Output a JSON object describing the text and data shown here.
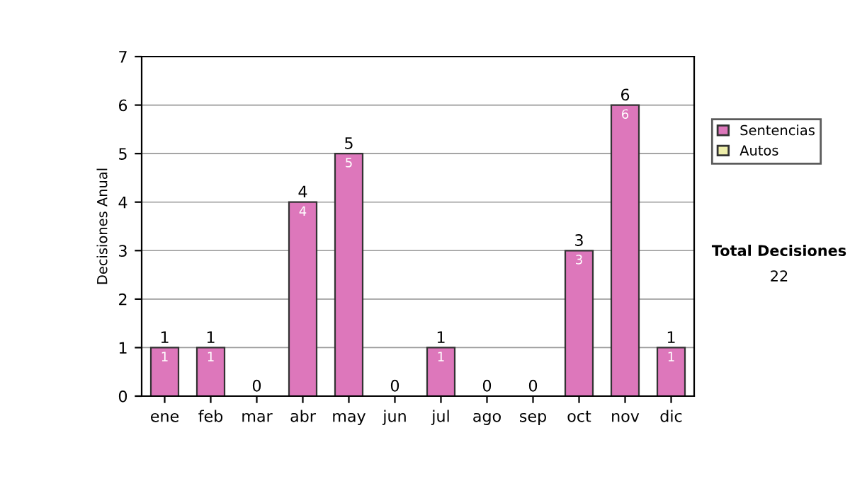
{
  "chart_data": {
    "type": "bar",
    "ylabel": "Decisiones Anual",
    "categories": [
      "ene",
      "feb",
      "mar",
      "abr",
      "may",
      "jun",
      "jul",
      "ago",
      "sep",
      "oct",
      "nov",
      "dic"
    ],
    "stacked": true,
    "series": [
      {
        "name": "Sentencias",
        "color": "#dd77bb",
        "values": [
          1,
          1,
          0,
          4,
          5,
          0,
          1,
          0,
          0,
          3,
          6,
          1
        ],
        "value_labels": [
          "1",
          "1",
          null,
          "4",
          "5",
          null,
          "1",
          null,
          null,
          "3",
          "6",
          "1"
        ]
      },
      {
        "name": "Autos",
        "color": "#eeeeaa",
        "values": [
          0,
          0,
          0,
          0,
          0,
          0,
          0,
          0,
          0,
          0,
          0,
          0
        ]
      }
    ],
    "totals": [
      "1",
      "1",
      "0",
      "4",
      "5",
      "0",
      "1",
      "0",
      "0",
      "3",
      "6",
      "1"
    ],
    "ylim": [
      0,
      7
    ],
    "yticks": [
      0,
      1,
      2,
      3,
      4,
      5,
      6,
      7
    ],
    "grid": "y",
    "legend": "right",
    "annotations": [
      "Total Decisiones",
      "22"
    ]
  }
}
